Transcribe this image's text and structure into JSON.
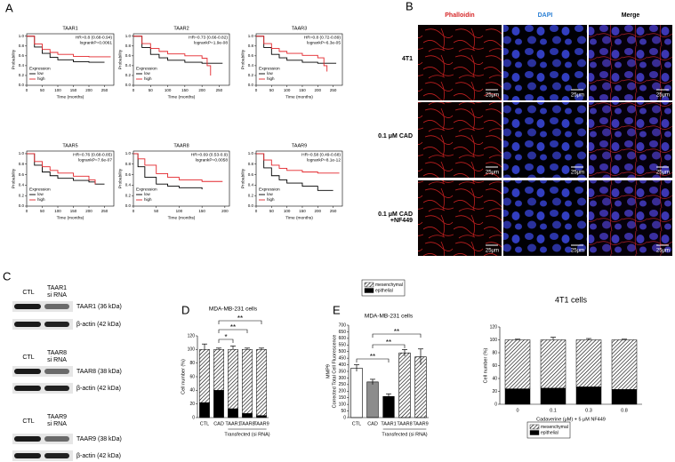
{
  "panel_labels": [
    "A",
    "B",
    "C",
    "D",
    "E"
  ],
  "microscopy": {
    "columns": [
      "Phalloidin",
      "DAPI",
      "Merge"
    ],
    "rows": [
      "4T1",
      "0.1 μM CAD",
      "0.1 μM CAD +NF449"
    ],
    "scale_bar": "25μm"
  },
  "blots": [
    {
      "lanes": [
        "CTL",
        "TAAR1 si RNA"
      ],
      "bands": [
        "TAAR1 (36 kDa)",
        "β-actin (42 kDa)"
      ]
    },
    {
      "lanes": [
        "CTL",
        "TAAR8 si RNA"
      ],
      "bands": [
        "TAAR8 (38 kDa)",
        "β-actin (42 kDa)"
      ]
    },
    {
      "lanes": [
        "CTL",
        "TAAR9 si RNA"
      ],
      "bands": [
        "TAAR9 (38 kDa)",
        "β-actin (42 kDa)"
      ]
    }
  ],
  "chart_data": [
    {
      "type": "line",
      "title": "TAAR1",
      "annotations": [
        "HR=0.8 (0.68-0.94)",
        "logrankP=0.0061"
      ],
      "xlabel": "Time (months)",
      "ylabel": "Probability",
      "legend_title": "Expression",
      "x": [
        0,
        25,
        50,
        75,
        100,
        150,
        200,
        250,
        270
      ],
      "series": [
        {
          "name": "low",
          "color": "#000000",
          "values": [
            1,
            0.78,
            0.65,
            0.57,
            0.52,
            0.48,
            0.47,
            0.47,
            null
          ]
        },
        {
          "name": "high",
          "color": "#e3262b",
          "values": [
            1,
            0.84,
            0.73,
            0.67,
            0.63,
            0.59,
            0.58,
            0.58,
            0.58
          ]
        }
      ],
      "xlim": [
        0,
        280
      ],
      "xticks": [
        0,
        50,
        100,
        150,
        200,
        250
      ],
      "ylim": [
        0,
        1.05
      ],
      "yticks": [
        {
          "value": 0,
          "label": "0.0"
        },
        0.2,
        0.4,
        0.6,
        0.8,
        {
          "value": 1,
          "label": "1.0"
        }
      ]
    },
    {
      "type": "line",
      "title": "TAAR2",
      "annotations": [
        "HR=0.73 (0.66-0.82)",
        "logrankP=1.9e-08"
      ],
      "xlabel": "Time (months)",
      "ylabel": "Probability",
      "legend_title": "Expression",
      "x": [
        0,
        25,
        50,
        75,
        100,
        150,
        200,
        215,
        225,
        260
      ],
      "series": [
        {
          "name": "low",
          "color": "#000000",
          "values": [
            1,
            0.77,
            0.63,
            0.56,
            0.51,
            0.47,
            0.45,
            0.45,
            0.45,
            0.45
          ]
        },
        {
          "name": "high",
          "color": "#e3262b",
          "values": [
            1,
            0.85,
            0.75,
            0.69,
            0.64,
            0.6,
            0.55,
            0.4,
            0.2,
            null
          ]
        }
      ],
      "xlim": [
        0,
        280
      ],
      "xticks": [
        0,
        50,
        100,
        150,
        200,
        250
      ],
      "ylim": [
        0,
        1.05
      ],
      "yticks": [
        {
          "value": 0,
          "label": "0.0"
        },
        0.2,
        0.4,
        0.6,
        0.8,
        {
          "value": 1,
          "label": "1.0"
        }
      ]
    },
    {
      "type": "line",
      "title": "TAAR3",
      "annotations": [
        "HR=0.8 (0.72-0.89)",
        "logrankP=6.3e-05"
      ],
      "xlabel": "Time (months)",
      "ylabel": "Probability",
      "legend_title": "Expression",
      "x": [
        0,
        25,
        50,
        75,
        100,
        150,
        200,
        220,
        230,
        260
      ],
      "series": [
        {
          "name": "low",
          "color": "#000000",
          "values": [
            1,
            0.77,
            0.63,
            0.56,
            0.51,
            0.47,
            0.45,
            0.45,
            0.45,
            0.45
          ]
        },
        {
          "name": "high",
          "color": "#e3262b",
          "values": [
            1,
            0.85,
            0.75,
            0.69,
            0.65,
            0.61,
            0.56,
            0.4,
            0.28,
            null
          ]
        }
      ],
      "xlim": [
        0,
        280
      ],
      "xticks": [
        0,
        50,
        100,
        150,
        200,
        250
      ],
      "ylim": [
        0,
        1.05
      ],
      "yticks": [
        {
          "value": 0,
          "label": "0.0"
        },
        0.2,
        0.4,
        0.6,
        0.8,
        {
          "value": 1,
          "label": "1.0"
        }
      ]
    },
    {
      "type": "line",
      "title": "TAAR5",
      "annotations": [
        "HR=0.76 (0.68-0.85)",
        "logrankP=7.6e-07"
      ],
      "xlabel": "Time (months)",
      "ylabel": "Probability",
      "legend_title": "Expression",
      "x": [
        0,
        25,
        50,
        75,
        100,
        150,
        200,
        220,
        250
      ],
      "series": [
        {
          "name": "low",
          "color": "#000000",
          "values": [
            1,
            0.78,
            0.65,
            0.58,
            0.53,
            0.49,
            0.46,
            0.42,
            0.42
          ]
        },
        {
          "name": "high",
          "color": "#e3262b",
          "values": [
            1,
            0.85,
            0.75,
            0.68,
            0.63,
            0.57,
            0.5,
            0.42,
            null
          ]
        }
      ],
      "xlim": [
        0,
        280
      ],
      "xticks": [
        0,
        50,
        100,
        150,
        200,
        250
      ],
      "ylim": [
        0,
        1.05
      ],
      "yticks": [
        {
          "value": 0,
          "label": "0.0"
        },
        0.2,
        0.4,
        0.6,
        0.8,
        {
          "value": 1,
          "label": "1.0"
        }
      ]
    },
    {
      "type": "line",
      "title": "TAAR8",
      "annotations": [
        "HR=0.69 (0.53-0.9)",
        "logrankP=0.0058"
      ],
      "xlabel": "Time (months)",
      "ylabel": "Probability",
      "legend_title": "Expression",
      "x": [
        0,
        10,
        25,
        50,
        75,
        100,
        150,
        175,
        195
      ],
      "series": [
        {
          "name": "low",
          "color": "#000000",
          "values": [
            1,
            0.75,
            0.55,
            0.42,
            0.38,
            0.35,
            0.32,
            null,
            null
          ]
        },
        {
          "name": "high",
          "color": "#e3262b",
          "values": [
            1,
            0.9,
            0.78,
            0.62,
            0.55,
            0.5,
            0.47,
            0.47,
            0.47
          ]
        }
      ],
      "xlim": [
        0,
        210
      ],
      "xticks": [
        0,
        50,
        100,
        150,
        200
      ],
      "ylim": [
        0,
        1.05
      ],
      "yticks": [
        {
          "value": 0,
          "label": "0.0"
        },
        0.2,
        0.4,
        0.6,
        0.8,
        {
          "value": 1,
          "label": "1.0"
        }
      ]
    },
    {
      "type": "line",
      "title": "TAAR9",
      "annotations": [
        "HR=0.58 (0.49-0.68)",
        "logrankP=8.1e-12"
      ],
      "xlabel": "Time (months)",
      "ylabel": "Probability",
      "legend_title": "Expression",
      "x": [
        0,
        25,
        50,
        75,
        100,
        150,
        200,
        250,
        270
      ],
      "series": [
        {
          "name": "low",
          "color": "#000000",
          "values": [
            1,
            0.73,
            0.58,
            0.5,
            0.44,
            0.38,
            0.3,
            0.3,
            null
          ]
        },
        {
          "name": "high",
          "color": "#e3262b",
          "values": [
            1,
            0.88,
            0.78,
            0.72,
            0.68,
            0.65,
            0.63,
            0.63,
            0.63
          ]
        }
      ],
      "xlim": [
        0,
        280
      ],
      "xticks": [
        0,
        50,
        100,
        150,
        200,
        250
      ],
      "ylim": [
        0,
        1.05
      ],
      "yticks": [
        {
          "value": 0,
          "label": "0.0"
        },
        0.2,
        0.4,
        0.6,
        0.8,
        {
          "value": 1,
          "label": "1.0"
        }
      ]
    },
    {
      "type": "bar",
      "stacked": true,
      "title": "MDA-MB-231 cells",
      "ylabel": "Cell number (%)",
      "group_label": "Transfected (si RNA)",
      "categories": [
        "CTL",
        "CAD",
        "TAAR1",
        "TAAR8",
        "TAAR9"
      ],
      "series": [
        {
          "name": "epithelial",
          "color": "#000000",
          "hatched": false,
          "values": [
            22,
            40,
            13,
            6,
            3
          ],
          "errors": [
            6,
            5,
            3,
            1,
            1
          ]
        },
        {
          "name": "mesenchymal",
          "color": "#ffffff",
          "hatched": true,
          "values": [
            78,
            60,
            87,
            94,
            97
          ],
          "errors": [
            8,
            2,
            5,
            2,
            2
          ]
        }
      ],
      "ylim": [
        0,
        120
      ],
      "yticks": [
        0,
        20,
        40,
        60,
        80,
        100,
        120
      ],
      "significance": [
        "*",
        "**",
        "**"
      ]
    },
    {
      "type": "bar",
      "title": "MDA-MB-231 cells",
      "ylabel": [
        "MMP9",
        "Corrected Total Cell Fluorescence"
      ],
      "group_label": "Transfected (si RNA)",
      "categories": [
        "CTL",
        "CAD",
        "TAAR1",
        "TAAR8",
        "TAAR9"
      ],
      "values": [
        375,
        270,
        160,
        490,
        460
      ],
      "errors": [
        25,
        20,
        20,
        25,
        60
      ],
      "colors": [
        "#ffffff",
        "#8c8c8c",
        "#000000",
        "#ffffff",
        "#ffffff"
      ],
      "hatched": [
        false,
        false,
        false,
        true,
        true
      ],
      "ylim": [
        0,
        700
      ],
      "yticks": [
        0,
        50,
        100,
        150,
        200,
        250,
        300,
        350,
        400,
        450,
        500,
        550,
        600,
        650,
        700
      ],
      "significance": [
        "**",
        "**",
        "**"
      ]
    },
    {
      "type": "bar",
      "stacked": true,
      "title": "4T1 cells",
      "xlabel": "Cadaverine (μM) + 5 μM NF449",
      "ylabel": "Cell number (%)",
      "categories": [
        "0",
        "0.1",
        "0.3",
        "0.8"
      ],
      "series": [
        {
          "name": "epithelial",
          "color": "#000000",
          "hatched": false,
          "values": [
            24,
            25,
            27,
            23
          ]
        },
        {
          "name": "mesenchymal",
          "color": "#ffffff",
          "hatched": true,
          "values": [
            76,
            75,
            73,
            77
          ],
          "errors": [
            1,
            4,
            2,
            1
          ]
        }
      ],
      "ylim": [
        0,
        120
      ],
      "yticks": [
        0,
        20,
        40,
        60,
        80,
        100,
        120
      ]
    }
  ]
}
